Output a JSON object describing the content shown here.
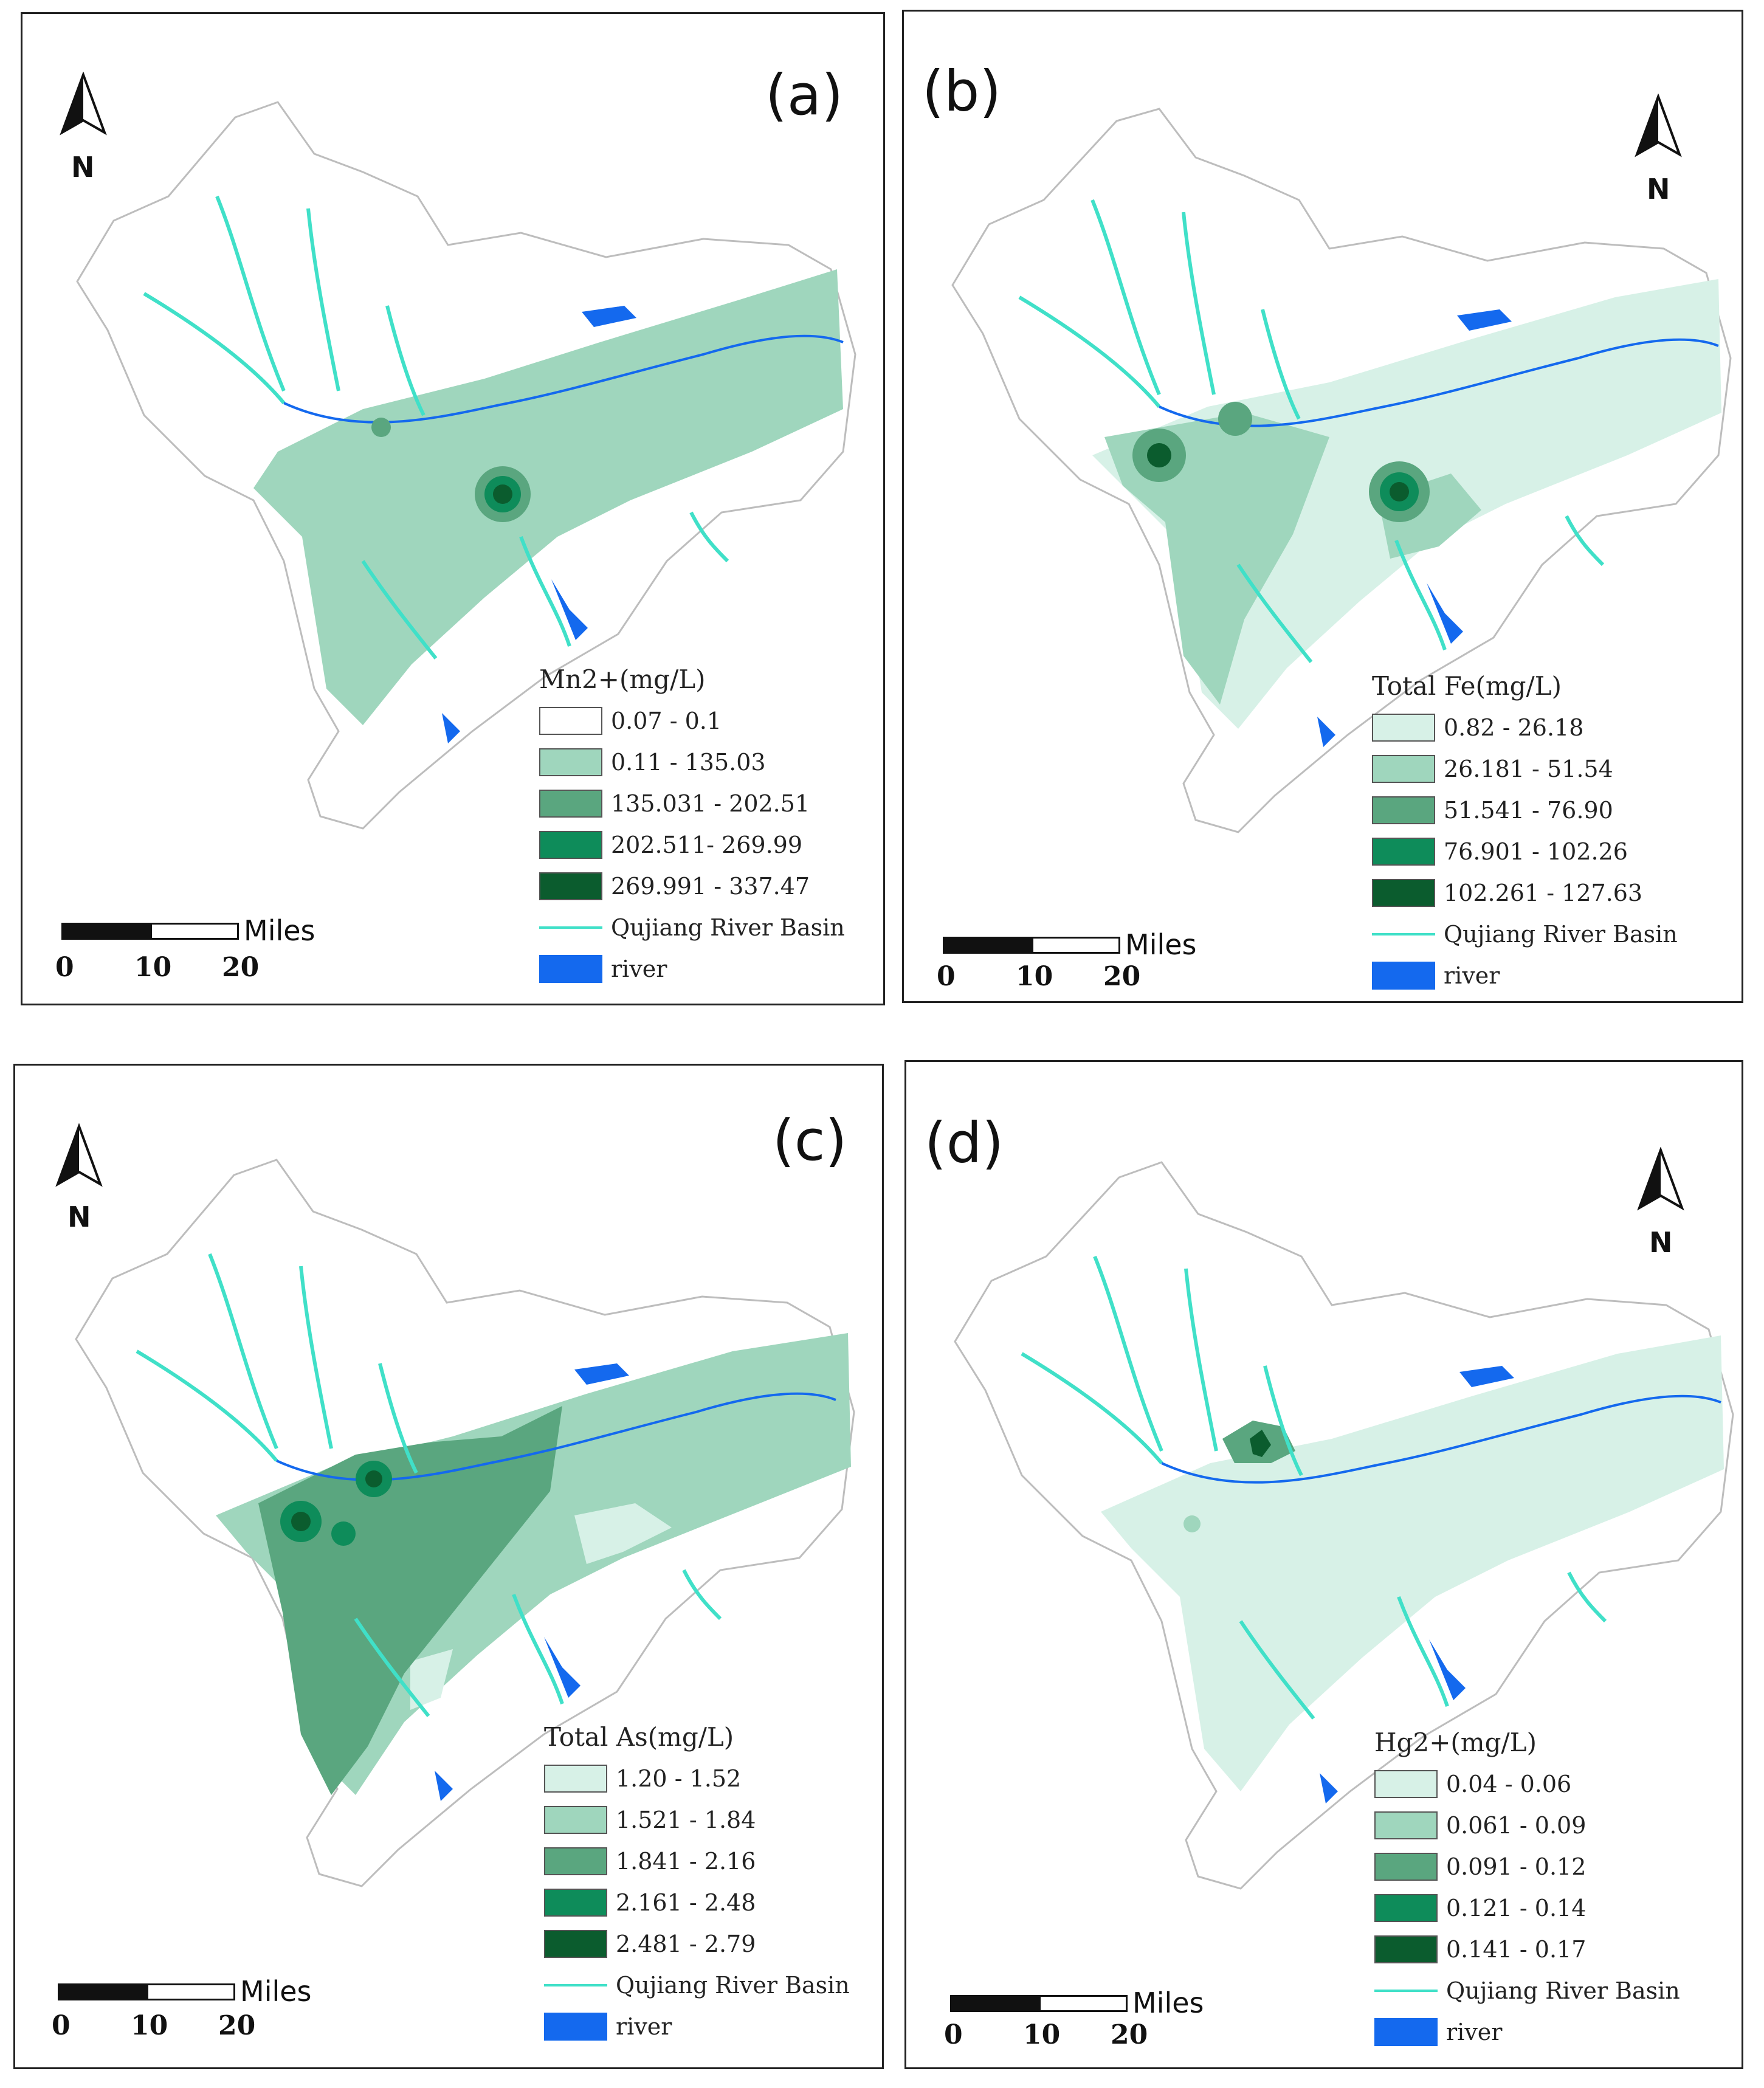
{
  "colors": {
    "outline": "#bdbdbd",
    "basin": "#40e0c8",
    "river": "#1469ee",
    "class1_white": "#ffffff",
    "c1": "#d7f1e7",
    "c2": "#9fd6bd",
    "c3": "#5aa67f",
    "c4": "#0e8c5a",
    "c5": "#0b5c2e"
  },
  "north_letter": "N",
  "scalebar": {
    "unit": "Miles",
    "ticks": [
      "0",
      "10",
      "20"
    ]
  },
  "legend_common": {
    "basin": "Qujiang River Basin",
    "river": "river"
  },
  "panels": [
    {
      "label": "(a)",
      "legend_title": "Mn2+(mg/L)",
      "classes": [
        "0.07 - 0.1",
        "0.11 - 135.03",
        "135.031 - 202.51",
        "202.511- 269.99",
        "269.991 - 337.47"
      ]
    },
    {
      "label": "(b)",
      "legend_title": "Total Fe(mg/L)",
      "classes": [
        "0.82 - 26.18",
        "26.181 - 51.54",
        "51.541 - 76.90",
        "76.901 - 102.26",
        "102.261 - 127.63"
      ]
    },
    {
      "label": "(c)",
      "legend_title": "Total As(mg/L)",
      "classes": [
        "1.20 - 1.52",
        "1.521 - 1.84",
        "1.841 - 2.16",
        "2.161 - 2.48",
        "2.481 - 2.79"
      ]
    },
    {
      "label": "(d)",
      "legend_title": "Hg2+(mg/L)",
      "classes": [
        "0.04 - 0.06",
        "0.061 - 0.09",
        "0.091 - 0.12",
        "0.121 - 0.14",
        "0.141 - 0.17"
      ]
    }
  ]
}
